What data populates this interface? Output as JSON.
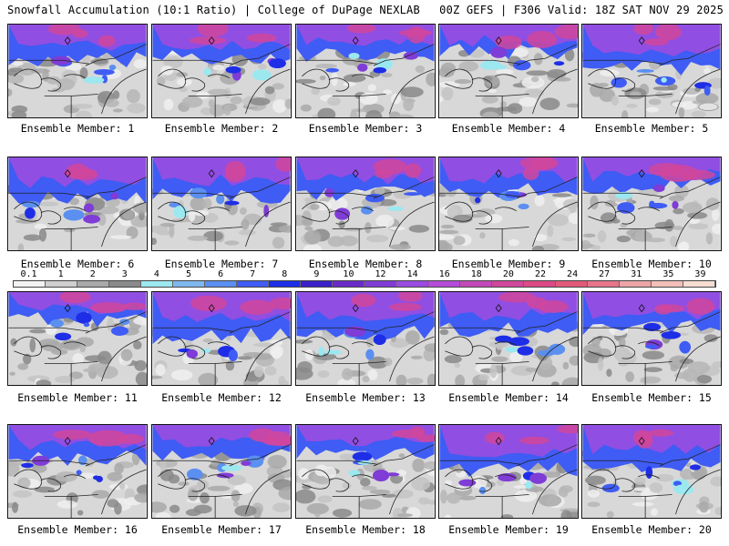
{
  "header": {
    "left": "Snowfall Accumulation (10:1 Ratio) | College of DuPage NEXLAB",
    "right": "00Z GEFS | F306 Valid: 18Z SAT NOV 29 2025"
  },
  "legend": {
    "labels": [
      "0.1",
      "1",
      "2",
      "3",
      "4",
      "5",
      "6",
      "7",
      "8",
      "9",
      "10",
      "12",
      "14",
      "16",
      "18",
      "20",
      "22",
      "24",
      "27",
      "31",
      "35",
      "39"
    ],
    "colors": [
      "#f2f2f2",
      "#cfcfcf",
      "#a9a9a9",
      "#8a8a8a",
      "#9ce8f0",
      "#7fb8ef",
      "#5b8ff0",
      "#3f5cf4",
      "#1e2ee6",
      "#3b22c8",
      "#6a2cc8",
      "#7f3cd6",
      "#9a4ce0",
      "#b44cd8",
      "#c24ab8",
      "#d0479c",
      "#dc4a86",
      "#e25a7a",
      "#e6758a",
      "#eca4a6",
      "#f2c0b8",
      "#f7dcd2"
    ]
  },
  "members": [
    {
      "label": "Ensemble Member: 1"
    },
    {
      "label": "Ensemble Member: 2"
    },
    {
      "label": "Ensemble Member: 3"
    },
    {
      "label": "Ensemble Member: 4"
    },
    {
      "label": "Ensemble Member: 5"
    },
    {
      "label": "Ensemble Member: 6"
    },
    {
      "label": "Ensemble Member: 7"
    },
    {
      "label": "Ensemble Member: 8"
    },
    {
      "label": "Ensemble Member: 9"
    },
    {
      "label": "Ensemble Member: 10"
    },
    {
      "label": "Ensemble Member: 11"
    },
    {
      "label": "Ensemble Member: 12"
    },
    {
      "label": "Ensemble Member: 13"
    },
    {
      "label": "Ensemble Member: 14"
    },
    {
      "label": "Ensemble Member: 15"
    },
    {
      "label": "Ensemble Member: 16"
    },
    {
      "label": "Ensemble Member: 17"
    },
    {
      "label": "Ensemble Member: 18"
    },
    {
      "label": "Ensemble Member: 19"
    },
    {
      "label": "Ensemble Member: 20"
    }
  ]
}
